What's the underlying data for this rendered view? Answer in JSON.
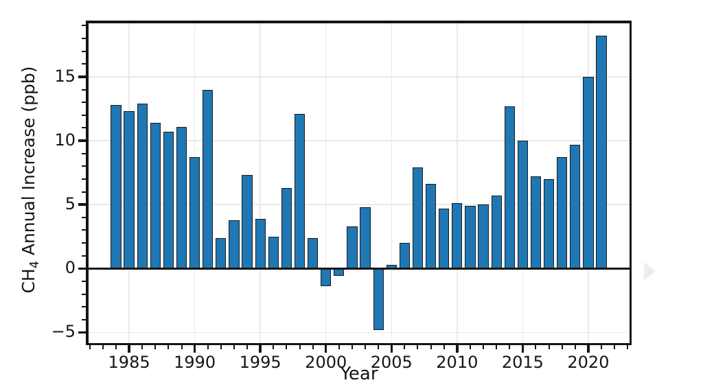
{
  "chart_data": {
    "type": "bar",
    "title": "",
    "xlabel": "Year",
    "ylabel": "CH4 Annual Increase (ppb)",
    "ylabel_prefix": "CH",
    "ylabel_sub": "4",
    "ylabel_suffix": " Annual Increase (ppb)",
    "x": [
      1984,
      1985,
      1986,
      1987,
      1988,
      1989,
      1990,
      1991,
      1992,
      1993,
      1994,
      1995,
      1996,
      1997,
      1998,
      1999,
      2000,
      2001,
      2002,
      2003,
      2004,
      2005,
      2006,
      2007,
      2008,
      2009,
      2010,
      2011,
      2012,
      2013,
      2014,
      2015,
      2016,
      2017,
      2018,
      2019,
      2020,
      2021
    ],
    "values": [
      12.8,
      12.3,
      12.9,
      11.4,
      10.7,
      11.1,
      8.7,
      14.0,
      2.4,
      3.8,
      7.3,
      3.9,
      2.5,
      6.3,
      12.1,
      2.4,
      -1.4,
      -0.6,
      3.3,
      4.8,
      -4.8,
      0.3,
      2.0,
      7.9,
      6.6,
      4.7,
      5.1,
      4.9,
      5.0,
      5.7,
      12.7,
      10.0,
      7.2,
      7.0,
      8.7,
      9.7,
      15.0,
      18.2
    ],
    "xlim": [
      1981.7,
      2023.3
    ],
    "ylim": [
      -6.0,
      19.4
    ],
    "xticks": [
      1985,
      1990,
      1995,
      2000,
      2005,
      2010,
      2015,
      2020
    ],
    "xtick_labels": [
      "1985",
      "1990",
      "1995",
      "2000",
      "2005",
      "2010",
      "2015",
      "2020"
    ],
    "yticks": [
      15,
      10,
      5,
      0,
      -5
    ],
    "ytick_labels": [
      "15",
      "10",
      "5",
      "0",
      "−5"
    ],
    "bar_width_years": 0.8,
    "grid": true,
    "legend": "none",
    "zero_line": true,
    "colors": {
      "bar_fill": "#1f77b4",
      "bar_edge": "#1a1a1a",
      "gridline": "#e9e9e9",
      "spine": "#141414",
      "text": "#151515"
    }
  },
  "ui": {
    "carousel_next_color": "#ededed"
  }
}
